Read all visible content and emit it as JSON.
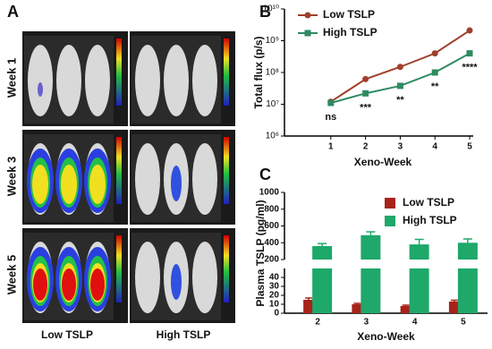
{
  "panel_a": {
    "label": "A",
    "rows": [
      "Week 1",
      "Week 3",
      "Week 5"
    ],
    "columns": [
      "Low TSLP",
      "High TSLP"
    ]
  },
  "chart_data": [
    {
      "type": "line",
      "panel_label": "B",
      "x_label": "Xeno-Week",
      "y_label": "Total flux (p/s)",
      "log_scale": true,
      "legend": "upper left",
      "x": [
        1,
        2,
        3,
        4,
        5
      ],
      "xlim": [
        0,
        5
      ],
      "xticks": [
        1,
        2,
        3,
        4,
        5
      ],
      "ylim": [
        1000000,
        10000000000
      ],
      "yticks": [
        {
          "value": 1000000,
          "label": "10⁶"
        },
        {
          "value": 10000000,
          "label": "10⁷"
        },
        {
          "value": 100000000,
          "label": "10⁸"
        },
        {
          "value": 1000000000,
          "label": "10⁹"
        },
        {
          "value": 10000000000,
          "label": "10¹⁰"
        }
      ],
      "series": [
        {
          "name": "Low TSLP",
          "color": "#a0402c",
          "values": [
            12000000,
            62000000,
            150000000,
            400000000,
            2100000000
          ]
        },
        {
          "name": "High TSLP",
          "color": "#2e8b62",
          "values": [
            11000000,
            22000000,
            38000000,
            100000000,
            400000000
          ]
        }
      ],
      "annotations": [
        {
          "x": 1,
          "text": "ns"
        },
        {
          "x": 2,
          "text": "***"
        },
        {
          "x": 3,
          "text": "**"
        },
        {
          "x": 4,
          "text": "**"
        },
        {
          "x": 5,
          "text": "****"
        }
      ]
    },
    {
      "type": "bar",
      "panel_label": "C",
      "x_label": "Xeno-Week",
      "y_label": "Plasma TSLP (pg/ml)",
      "broken_axis": true,
      "legend": "upper right",
      "categories": [
        "2",
        "3",
        "4",
        "5"
      ],
      "ylim": [
        0,
        50
      ],
      "yticks": [
        0,
        10,
        20,
        30,
        40
      ],
      "ylim_upper": [
        200,
        1000
      ],
      "yticks_upper": [
        200,
        400,
        600,
        800,
        1000
      ],
      "series": [
        {
          "name": "Low TSLP",
          "color": "#a8231a",
          "values": [
            15,
            10,
            8,
            13
          ],
          "errors": [
            2,
            1,
            1,
            1.5
          ]
        },
        {
          "name": "High TSLP",
          "color": "#1ea86a",
          "values": [
            360,
            490,
            380,
            400
          ],
          "errors": [
            30,
            40,
            60,
            45
          ]
        }
      ]
    }
  ]
}
